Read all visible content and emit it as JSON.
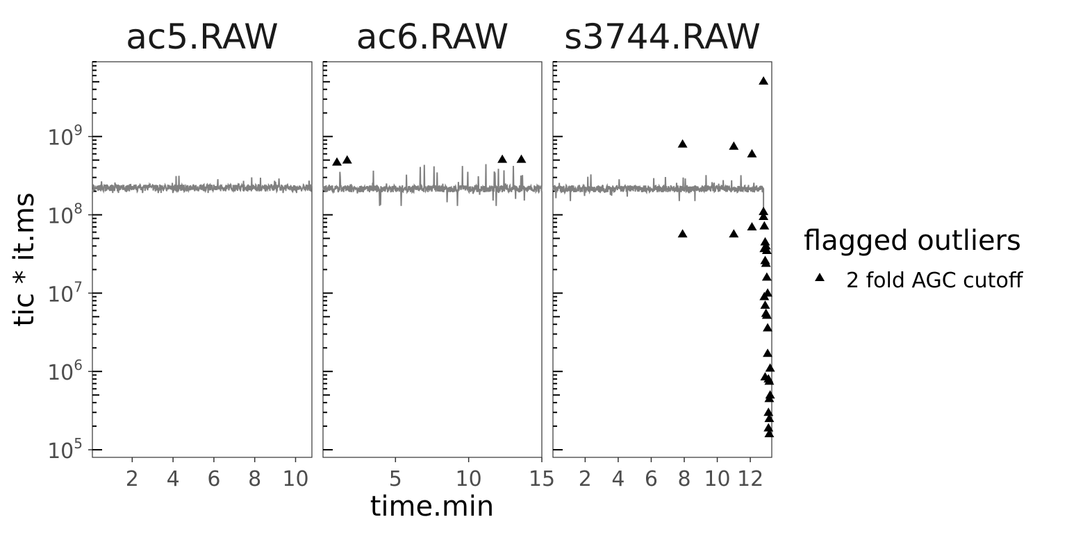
{
  "chart_data": {
    "type": "line",
    "xlabel": "time.min",
    "ylabel": "tic * it.ms",
    "y_scale": "log10",
    "ylim": [
      80000,
      9000000000
    ],
    "y_major_ticks": [
      100000,
      1000000,
      10000000,
      100000000,
      1000000000
    ],
    "y_tick_base": "10",
    "y_tick_exponents": [
      "5",
      "6",
      "7",
      "8",
      "9"
    ],
    "line_color": "#808080",
    "point_color": "#000000",
    "legend": {
      "title": "flagged outliers",
      "placement": "right",
      "entries": [
        {
          "label": "2 fold AGC cutoff",
          "shape": "triangle"
        }
      ]
    },
    "panels": [
      {
        "title": "ac5.RAW",
        "xlim": [
          0.05,
          10.8
        ],
        "x_ticks": [
          2,
          4,
          6,
          8,
          10
        ],
        "x_tick_labels": [
          "2",
          "4",
          "6",
          "8",
          "10"
        ],
        "series_level": 220000000,
        "series_range": [
          190000000,
          320000000
        ],
        "outliers": []
      },
      {
        "title": "ac6.RAW",
        "xlim": [
          0.05,
          15
        ],
        "x_ticks": [
          5,
          10,
          15
        ],
        "x_tick_labels": [
          "5",
          "10",
          "15"
        ],
        "series_level": 215000000,
        "series_range": [
          130000000,
          450000000
        ],
        "outliers": [
          {
            "x": 1.0,
            "y": 470000000
          },
          {
            "x": 1.7,
            "y": 500000000
          },
          {
            "x": 12.3,
            "y": 510000000
          },
          {
            "x": 13.6,
            "y": 510000000
          }
        ]
      },
      {
        "title": "s3744.RAW",
        "xlim": [
          0.05,
          13.3
        ],
        "x_ticks": [
          2,
          4,
          6,
          8,
          10,
          12
        ],
        "x_tick_labels": [
          "2",
          "4",
          "6",
          "8",
          "10",
          "12"
        ],
        "series_level": 215000000,
        "series_range": [
          150000000,
          330000000
        ],
        "series_end": 12.8,
        "outliers": [
          {
            "x": 7.9,
            "y": 800000000
          },
          {
            "x": 7.9,
            "y": 57000000
          },
          {
            "x": 11.0,
            "y": 750000000
          },
          {
            "x": 11.0,
            "y": 57000000
          },
          {
            "x": 12.1,
            "y": 600000000
          },
          {
            "x": 12.1,
            "y": 70000000
          },
          {
            "x": 12.8,
            "y": 5100000000
          },
          {
            "x": 12.8,
            "y": 110000000
          },
          {
            "x": 12.8,
            "y": 95000000
          },
          {
            "x": 12.85,
            "y": 72000000
          },
          {
            "x": 12.9,
            "y": 45000000
          },
          {
            "x": 12.95,
            "y": 40000000
          },
          {
            "x": 12.85,
            "y": 37000000
          },
          {
            "x": 13.0,
            "y": 35000000
          },
          {
            "x": 12.9,
            "y": 26000000
          },
          {
            "x": 12.95,
            "y": 24000000
          },
          {
            "x": 13.0,
            "y": 16000000
          },
          {
            "x": 13.05,
            "y": 10000000
          },
          {
            "x": 12.85,
            "y": 9000000
          },
          {
            "x": 12.9,
            "y": 7000000
          },
          {
            "x": 12.95,
            "y": 5500000
          },
          {
            "x": 13.0,
            "y": 5200000
          },
          {
            "x": 13.05,
            "y": 3600000
          },
          {
            "x": 13.05,
            "y": 1700000
          },
          {
            "x": 13.2,
            "y": 1100000
          },
          {
            "x": 12.9,
            "y": 850000
          },
          {
            "x": 13.1,
            "y": 800000
          },
          {
            "x": 13.15,
            "y": 750000
          },
          {
            "x": 13.2,
            "y": 500000
          },
          {
            "x": 13.15,
            "y": 450000
          },
          {
            "x": 13.1,
            "y": 300000
          },
          {
            "x": 13.15,
            "y": 250000
          },
          {
            "x": 13.1,
            "y": 190000
          },
          {
            "x": 13.15,
            "y": 160000
          }
        ]
      }
    ]
  }
}
